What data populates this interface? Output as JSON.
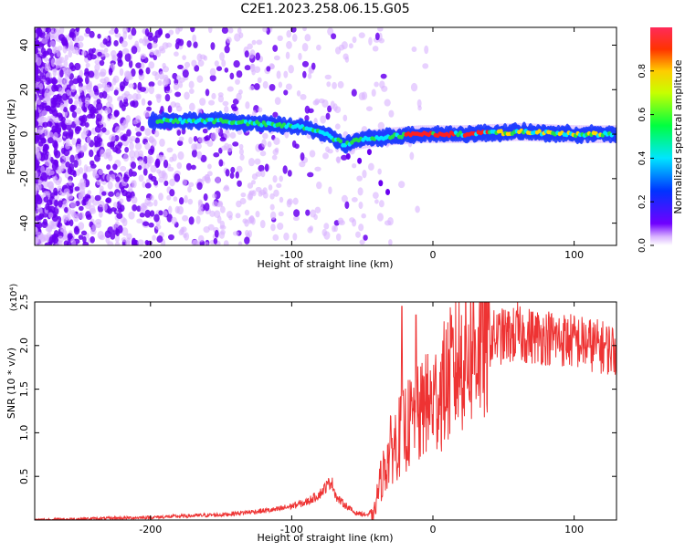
{
  "title": "C2E1.2023.258.06.15.G05",
  "colors": {
    "line": "#ee3333",
    "frame": "#000000",
    "spec_low": "#d9b3ff",
    "spec_mid": "#6a00f0",
    "band": [
      "#1e3cff",
      "#00e5ff",
      "#22e04a",
      "#ffd700",
      "#ff2020"
    ]
  },
  "chart_data": [
    {
      "type": "heatmap",
      "xlabel": "Height of straight line (km)",
      "ylabel": "Frequency (Hz)",
      "xlim": [
        -282,
        130
      ],
      "ylim": [
        -50,
        48
      ],
      "xticks": [
        -200,
        -100,
        0,
        100
      ],
      "xtick_labels": [
        "-200",
        "-100",
        "0",
        "100"
      ],
      "yticks": [
        -40,
        -20,
        0,
        20,
        40
      ],
      "ytick_labels": [
        "-40",
        "-20",
        "0",
        "20",
        "40"
      ],
      "colorbar": {
        "label": "Normalized spectral amplitude",
        "range": [
          0,
          1
        ],
        "ticks": [
          0.0,
          0.2,
          0.4,
          0.6,
          0.8
        ],
        "tick_labels": [
          "0.0",
          "0.2",
          "0.4",
          "0.6",
          "0.8"
        ]
      },
      "band_center": [
        [
          -195,
          6
        ],
        [
          -170,
          6
        ],
        [
          -150,
          6
        ],
        [
          -130,
          5
        ],
        [
          -110,
          4
        ],
        [
          -90,
          3
        ],
        [
          -80,
          1
        ],
        [
          -70,
          -2
        ],
        [
          -62,
          -5
        ],
        [
          -55,
          -3
        ],
        [
          -45,
          -2
        ],
        [
          -30,
          -1
        ],
        [
          -10,
          0
        ],
        [
          20,
          0
        ],
        [
          60,
          1
        ],
        [
          100,
          0
        ],
        [
          130,
          0
        ]
      ]
    },
    {
      "type": "line",
      "xlabel": "Height of straight line (km)",
      "ylabel": "SNR (10 * v/v)",
      "y_multiplier": "(x10⁴)",
      "xlim": [
        -282,
        130
      ],
      "ylim": [
        0,
        25000
      ],
      "xticks": [
        -200,
        -100,
        0,
        100
      ],
      "xtick_labels": [
        "-200",
        "-100",
        "0",
        "100"
      ],
      "yticks": [
        5000,
        10000,
        15000,
        20000,
        25000
      ],
      "ytick_labels": [
        "0.5",
        "1.0",
        "1.5",
        "2.0",
        "2.5"
      ],
      "trend": [
        [
          -282,
          0
        ],
        [
          -200,
          300
        ],
        [
          -150,
          600
        ],
        [
          -110,
          1200
        ],
        [
          -90,
          2000
        ],
        [
          -80,
          3000
        ],
        [
          -72,
          4500
        ],
        [
          -68,
          2500
        ],
        [
          -55,
          800
        ],
        [
          -42,
          500
        ],
        [
          -38,
          4000
        ],
        [
          -30,
          8000
        ],
        [
          -20,
          10500
        ],
        [
          -10,
          12000
        ],
        [
          0,
          13500
        ],
        [
          10,
          16000
        ],
        [
          20,
          18500
        ],
        [
          30,
          20000
        ],
        [
          45,
          21000
        ],
        [
          60,
          21200
        ],
        [
          80,
          21000
        ],
        [
          100,
          20500
        ],
        [
          115,
          20000
        ],
        [
          130,
          19500
        ]
      ],
      "spikes": [
        [
          -22,
          24500
        ],
        [
          -12,
          23500
        ],
        [
          -5,
          19000
        ],
        [
          40,
          24500
        ],
        [
          60,
          25000
        ]
      ]
    }
  ]
}
